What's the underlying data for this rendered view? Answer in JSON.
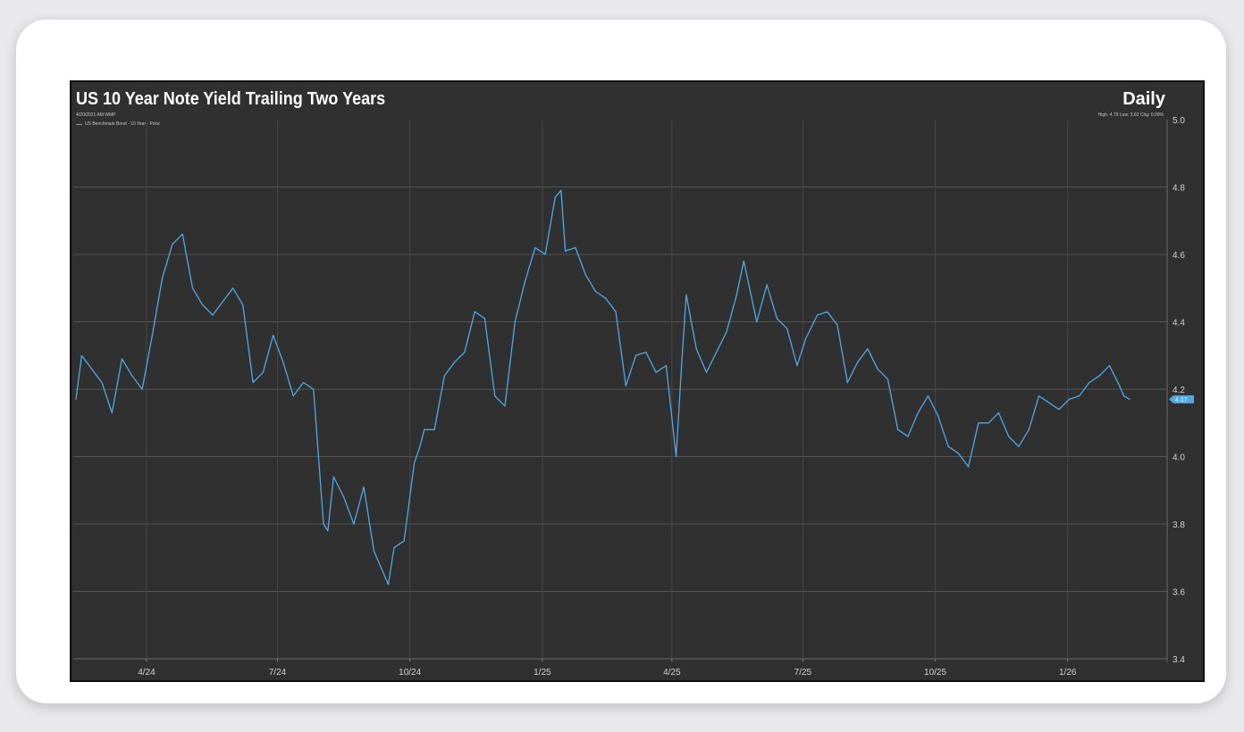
{
  "header": {
    "title": "US 10 Year Note Yield Trailing Two Years",
    "frequency": "Daily",
    "stamp": "4/20/2021 AM WMP",
    "stats": "High: 4.79 Low: 3.62 Chg: 0.00%"
  },
  "legend": {
    "label": "US Benchmark Bond - 10 Year - Price"
  },
  "last_value_tag": "4.17",
  "colors": {
    "background": "#303030",
    "line": "#4da9e8",
    "grid": "#555555",
    "card": "#ffffff"
  },
  "chart_data": {
    "type": "line",
    "title": "US 10 Year Note Yield Trailing Two Years",
    "xlabel": "",
    "ylabel": "",
    "ylim": [
      3.4,
      5.0
    ],
    "yticks": [
      "5.0",
      "4.8",
      "4.6",
      "4.4",
      "4.2",
      "4.0",
      "3.8",
      "3.6",
      "3.4"
    ],
    "xticks": [
      "4/24",
      "7/24",
      "10/24",
      "1/25",
      "4/25",
      "7/25",
      "10/25",
      "1/26"
    ],
    "grid": true,
    "legend_position": "top-left",
    "series": [
      {
        "name": "US Benchmark Bond - 10 Year - Price",
        "x": [
          "2024-02-12",
          "2024-02-16",
          "2024-02-23",
          "2024-03-01",
          "2024-03-08",
          "2024-03-15",
          "2024-03-22",
          "2024-03-29",
          "2024-04-05",
          "2024-04-12",
          "2024-04-19",
          "2024-04-26",
          "2024-05-03",
          "2024-05-10",
          "2024-05-17",
          "2024-05-24",
          "2024-05-31",
          "2024-06-07",
          "2024-06-14",
          "2024-06-21",
          "2024-06-28",
          "2024-07-05",
          "2024-07-12",
          "2024-07-19",
          "2024-07-26",
          "2024-08-02",
          "2024-08-05",
          "2024-08-09",
          "2024-08-16",
          "2024-08-23",
          "2024-08-30",
          "2024-09-06",
          "2024-09-13",
          "2024-09-16",
          "2024-09-20",
          "2024-09-27",
          "2024-10-04",
          "2024-10-08",
          "2024-10-11",
          "2024-10-18",
          "2024-10-25",
          "2024-11-01",
          "2024-11-08",
          "2024-11-15",
          "2024-11-22",
          "2024-11-29",
          "2024-12-06",
          "2024-12-13",
          "2024-12-20",
          "2024-12-27",
          "2025-01-03",
          "2025-01-10",
          "2025-01-14",
          "2025-01-17",
          "2025-01-24",
          "2025-01-31",
          "2025-02-07",
          "2025-02-14",
          "2025-02-21",
          "2025-02-28",
          "2025-03-07",
          "2025-03-14",
          "2025-03-21",
          "2025-03-28",
          "2025-04-04",
          "2025-04-08",
          "2025-04-11",
          "2025-04-18",
          "2025-04-25",
          "2025-05-02",
          "2025-05-09",
          "2025-05-16",
          "2025-05-21",
          "2025-05-30",
          "2025-06-06",
          "2025-06-13",
          "2025-06-20",
          "2025-06-27",
          "2025-07-03",
          "2025-07-11",
          "2025-07-18",
          "2025-07-25",
          "2025-08-01",
          "2025-08-08",
          "2025-08-15",
          "2025-08-22",
          "2025-08-29",
          "2025-09-05",
          "2025-09-12",
          "2025-09-19",
          "2025-09-26",
          "2025-10-03",
          "2025-10-10",
          "2025-10-17",
          "2025-10-24",
          "2025-10-31",
          "2025-11-07",
          "2025-11-14",
          "2025-11-21",
          "2025-11-28",
          "2025-12-05",
          "2025-12-12",
          "2025-12-19",
          "2025-12-26",
          "2026-01-02",
          "2026-01-09",
          "2026-01-16",
          "2026-01-23",
          "2026-01-30",
          "2026-02-06",
          "2026-02-09",
          "2026-02-13"
        ],
        "values": [
          4.17,
          4.3,
          4.26,
          4.22,
          4.13,
          4.29,
          4.24,
          4.2,
          4.36,
          4.53,
          4.63,
          4.66,
          4.5,
          4.45,
          4.42,
          4.46,
          4.5,
          4.45,
          4.22,
          4.25,
          4.36,
          4.28,
          4.18,
          4.22,
          4.2,
          3.8,
          3.78,
          3.94,
          3.88,
          3.8,
          3.91,
          3.72,
          3.65,
          3.62,
          3.73,
          3.75,
          3.98,
          4.03,
          4.08,
          4.08,
          4.24,
          4.28,
          4.31,
          4.43,
          4.41,
          4.18,
          4.15,
          4.4,
          4.52,
          4.62,
          4.6,
          4.77,
          4.79,
          4.61,
          4.62,
          4.54,
          4.49,
          4.47,
          4.43,
          4.21,
          4.3,
          4.31,
          4.25,
          4.27,
          4.0,
          4.29,
          4.48,
          4.32,
          4.25,
          4.31,
          4.37,
          4.48,
          4.58,
          4.4,
          4.51,
          4.41,
          4.38,
          4.27,
          4.35,
          4.42,
          4.43,
          4.39,
          4.22,
          4.28,
          4.32,
          4.26,
          4.23,
          4.08,
          4.06,
          4.13,
          4.18,
          4.12,
          4.03,
          4.01,
          3.97,
          4.1,
          4.1,
          4.13,
          4.06,
          4.03,
          4.08,
          4.18,
          4.16,
          4.14,
          4.17,
          4.18,
          4.22,
          4.24,
          4.27,
          4.21,
          4.18,
          4.17
        ]
      }
    ]
  }
}
